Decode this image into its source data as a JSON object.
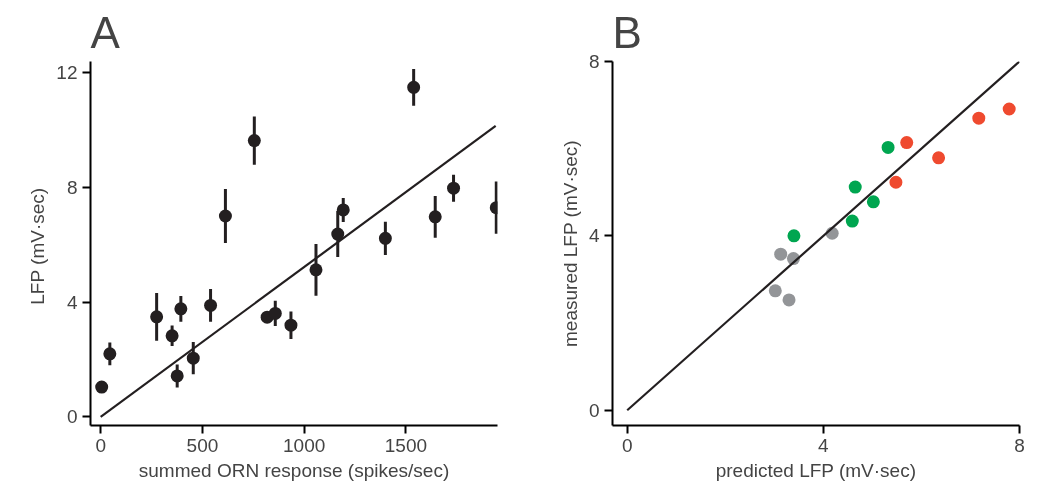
{
  "chart_data": [
    {
      "type": "scatter",
      "title": "A",
      "xlabel": "summed ORN response (spikes/sec)",
      "ylabel": "LFP  (mV·sec)",
      "xlim": [
        -50,
        1950
      ],
      "ylim": [
        -0.3,
        12.4
      ],
      "xticks": [
        0,
        500,
        1000,
        1500
      ],
      "yticks": [
        0,
        4,
        8,
        12
      ],
      "grid": false,
      "series": [
        {
          "marker": "circle",
          "color": "#231f20",
          "x": [
            5,
            45,
            275,
            351,
            376,
            394,
            455,
            540,
            613,
            755,
            818,
            858,
            935,
            1058,
            1165,
            1192,
            1399,
            1538,
            1644,
            1734,
            1944
          ],
          "values": [
            1.04,
            2.2,
            3.49,
            2.83,
            1.43,
            3.77,
            2.05,
            3.89,
            7.01,
            9.64,
            3.48,
            3.61,
            3.2,
            5.13,
            6.38,
            7.22,
            6.23,
            11.5,
            6.98,
            7.98,
            7.3
          ],
          "errors": [
            null,
            0.4,
            0.83,
            0.36,
            0.4,
            0.45,
            0.56,
            0.57,
            0.94,
            0.84,
            null,
            0.44,
            0.48,
            0.9,
            0.8,
            0.42,
            0.58,
            0.64,
            0.73,
            0.47,
            0.91
          ]
        },
        {
          "type": "line",
          "color": "#231f20",
          "x": [
            0,
            1941
          ],
          "values": [
            0,
            10.15
          ]
        }
      ]
    },
    {
      "type": "scatter",
      "title": "B",
      "xlabel": "predicted LFP (mV·sec)",
      "ylabel": "measured LFP (mV·sec)",
      "xlim": [
        -0.3,
        8
      ],
      "ylim": [
        -0.35,
        8
      ],
      "xticks": [
        0,
        4,
        8
      ],
      "yticks": [
        0,
        4,
        8
      ],
      "grid": false,
      "series": [
        {
          "marker": "circle",
          "color": "#939598",
          "x": [
            3.02,
            3.3,
            3.13,
            3.39,
            4.18
          ],
          "values": [
            2.74,
            2.53,
            3.58,
            3.48,
            4.06
          ]
        },
        {
          "marker": "circle",
          "color": "#00a650",
          "x": [
            3.4,
            4.59,
            4.65,
            5.02,
            5.32
          ],
          "values": [
            4.0,
            4.34,
            5.12,
            4.78,
            6.03
          ]
        },
        {
          "marker": "circle",
          "color": "#ef4a2f",
          "x": [
            5.48,
            5.7,
            6.35,
            7.17,
            7.79
          ],
          "values": [
            5.23,
            6.14,
            5.79,
            6.7,
            6.91
          ]
        },
        {
          "type": "line",
          "color": "#231f20",
          "x": [
            0,
            8
          ],
          "values": [
            0,
            8
          ]
        }
      ]
    }
  ]
}
